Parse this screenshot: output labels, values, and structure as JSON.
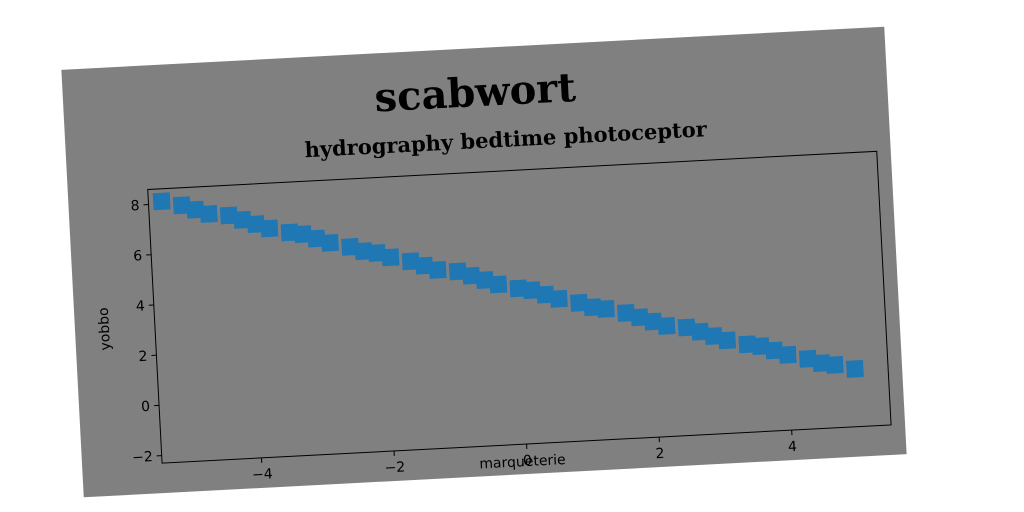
{
  "chart_data": {
    "type": "scatter",
    "title": "scabwort",
    "subtitle": "hydrography bedtime photoceptor",
    "xlabel": "marqueterie",
    "ylabel": "yobbo",
    "xlim": [
      -5.5,
      5.5
    ],
    "ylim": [
      -2.3,
      8.6
    ],
    "xticks": [
      -4,
      -2,
      0,
      2,
      4
    ],
    "yticks": [
      -2,
      0,
      2,
      4,
      6,
      8
    ],
    "xtick_labels": [
      "−4",
      "−2",
      "0",
      "2",
      "4"
    ],
    "ytick_labels": [
      "−2",
      "0",
      "2",
      "4",
      "6",
      "8"
    ],
    "grid": false,
    "series": [
      {
        "marker": "square",
        "color": "#1f77b4",
        "x": [
          -5.3,
          -5.0,
          -4.8,
          -4.6,
          -4.3,
          -4.1,
          -3.9,
          -3.7,
          -3.4,
          -3.2,
          -3.0,
          -2.8,
          -2.5,
          -2.3,
          -2.1,
          -1.9,
          -1.6,
          -1.4,
          -1.2,
          -0.9,
          -0.7,
          -0.5,
          -0.3,
          0.0,
          0.2,
          0.4,
          0.6,
          0.9,
          1.1,
          1.3,
          1.6,
          1.8,
          2.0,
          2.2,
          2.5,
          2.7,
          2.9,
          3.1,
          3.4,
          3.6,
          3.8,
          4.0,
          4.3,
          4.5,
          4.7,
          5.0
        ],
        "y": [
          8.1,
          7.9,
          7.7,
          7.5,
          7.4,
          7.2,
          7.0,
          6.8,
          6.6,
          6.5,
          6.3,
          6.1,
          5.9,
          5.7,
          5.6,
          5.4,
          5.2,
          5.0,
          4.8,
          4.7,
          4.5,
          4.3,
          4.1,
          3.9,
          3.8,
          3.6,
          3.4,
          3.2,
          3.0,
          2.9,
          2.7,
          2.5,
          2.3,
          2.1,
          2.0,
          1.8,
          1.6,
          1.4,
          1.2,
          1.1,
          0.9,
          0.7,
          0.5,
          0.3,
          0.2,
          0.0
        ]
      }
    ]
  }
}
